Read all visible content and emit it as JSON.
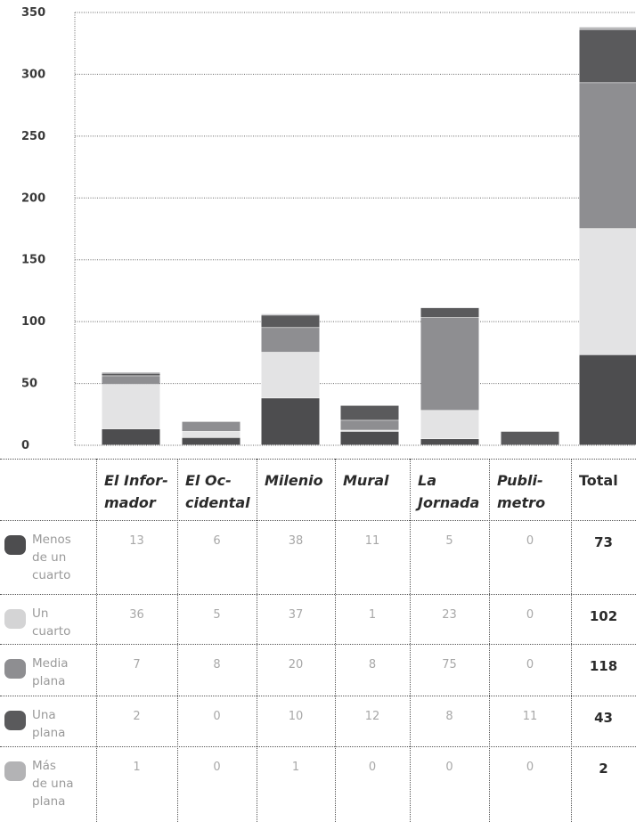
{
  "chart_data": {
    "type": "bar",
    "stacked": true,
    "categories": [
      "El Informador",
      "El Occidental",
      "Milenio",
      "Mural",
      "La Jornada",
      "Publimetro",
      "Total"
    ],
    "series": [
      {
        "name": "Menos de un cuarto",
        "values": [
          13,
          6,
          38,
          11,
          5,
          0,
          73
        ],
        "color": "#4d4d4f"
      },
      {
        "name": "Un cuarto",
        "values": [
          36,
          5,
          37,
          1,
          23,
          0,
          102
        ],
        "color": "#e3e3e4"
      },
      {
        "name": "Media plana",
        "values": [
          7,
          8,
          20,
          8,
          75,
          0,
          118
        ],
        "color": "#8e8e91"
      },
      {
        "name": "Una plana",
        "values": [
          2,
          0,
          10,
          12,
          8,
          11,
          43
        ],
        "color": "#5a5a5c"
      },
      {
        "name": "Más de una plana",
        "values": [
          1,
          0,
          1,
          0,
          0,
          0,
          2
        ],
        "color": "#b3b3b5"
      }
    ],
    "yticks": [
      "0",
      "50",
      "100",
      "150",
      "200",
      "250",
      "300",
      "350"
    ],
    "ylim": [
      0,
      350
    ],
    "grid": true,
    "legend": "table-below"
  },
  "table": {
    "headers": [
      {
        "line1": "El Infor-",
        "line2": "mador"
      },
      {
        "line1": "El Oc-",
        "line2": "cidental"
      },
      {
        "line1": "Milenio",
        "line2": ""
      },
      {
        "line1": "Mural",
        "line2": ""
      },
      {
        "line1": "La",
        "line2": "Jornada"
      },
      {
        "line1": "Publi-",
        "line2": "metro"
      },
      {
        "line1": "Total",
        "line2": ""
      }
    ],
    "rows": [
      {
        "label": [
          "Menos",
          "de un",
          "cuarto"
        ],
        "values": [
          "13",
          "6",
          "38",
          "11",
          "5",
          "0",
          "73"
        ]
      },
      {
        "label": [
          "Un",
          "cuarto"
        ],
        "values": [
          "36",
          "5",
          "37",
          "1",
          "23",
          "0",
          "102"
        ]
      },
      {
        "label": [
          "Media",
          "plana"
        ],
        "values": [
          "7",
          "8",
          "20",
          "8",
          "75",
          "0",
          "118"
        ]
      },
      {
        "label": [
          "Una",
          "plana"
        ],
        "values": [
          "2",
          "0",
          "10",
          "12",
          "8",
          "11",
          "43"
        ]
      },
      {
        "label": [
          "Más",
          "de una",
          "plana"
        ],
        "values": [
          "1",
          "0",
          "1",
          "0",
          "0",
          "0",
          "2"
        ]
      }
    ]
  }
}
